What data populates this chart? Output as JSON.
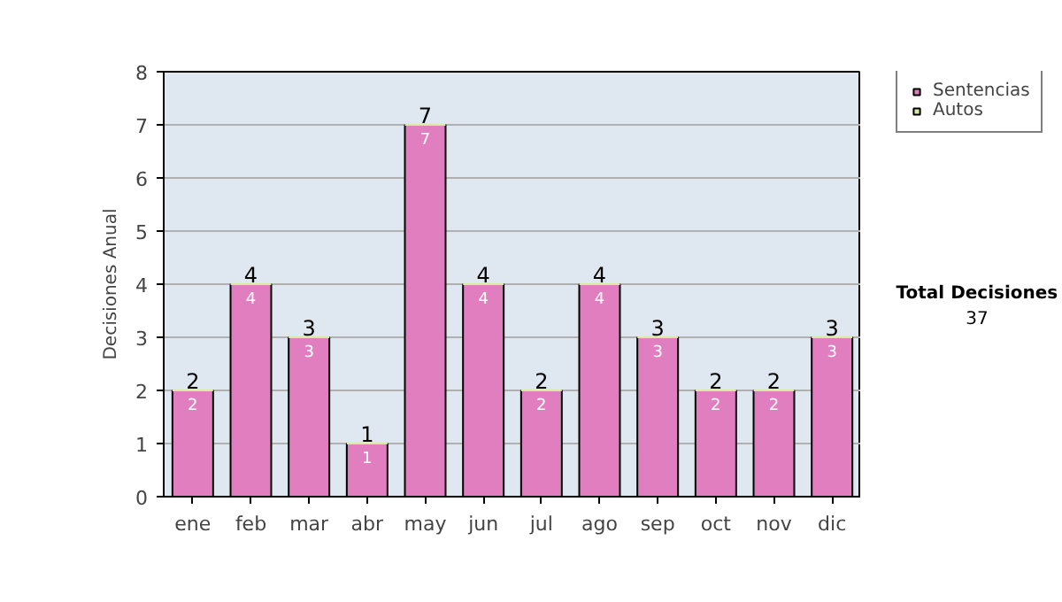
{
  "chart_data": {
    "type": "bar",
    "stacked": true,
    "ylabel": "Decisiones Anual",
    "categories": [
      "ene",
      "feb",
      "mar",
      "abr",
      "may",
      "jun",
      "jul",
      "ago",
      "sep",
      "oct",
      "nov",
      "dic"
    ],
    "series": [
      {
        "name": "Sentencias",
        "color": "#e07ec0",
        "values": [
          2,
          4,
          3,
          1,
          7,
          4,
          2,
          4,
          3,
          2,
          2,
          3
        ],
        "value_labels": [
          "2",
          "4",
          "3",
          "1",
          "7",
          "4",
          "2",
          "4",
          "3",
          "2",
          "2",
          "3"
        ]
      },
      {
        "name": "Autos",
        "color": "#d8eca0",
        "values": [
          0,
          0,
          0,
          0,
          0,
          0,
          0,
          0,
          0,
          0,
          0,
          0
        ]
      }
    ],
    "totals": [
      "2",
      "4",
      "3",
      "1",
      "7",
      "4",
      "2",
      "4",
      "3",
      "2",
      "2",
      "3"
    ],
    "ylim": [
      0,
      8
    ],
    "yticks": [
      0,
      1,
      2,
      3,
      4,
      5,
      6,
      7,
      8
    ],
    "grid": "y",
    "legend": "right",
    "annotations": [
      "Total Decisiones",
      "37"
    ]
  }
}
